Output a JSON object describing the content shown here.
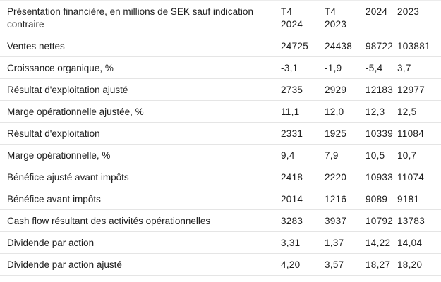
{
  "colors": {
    "background": "#ffffff",
    "text": "#1d1d1d",
    "divider": "#e5e5e5"
  },
  "table": {
    "header": {
      "label": "Présentation financière, en millions de SEK sauf indication contraire",
      "columns": [
        [
          "T4",
          "2024"
        ],
        [
          "T4",
          "2023"
        ],
        [
          "2024"
        ],
        [
          "2023"
        ]
      ]
    },
    "rows": [
      {
        "label": "Ventes nettes",
        "values": [
          "24725",
          "24438",
          "98722",
          "103881"
        ]
      },
      {
        "label": "Croissance organique, %",
        "values": [
          "-3,1",
          "-1,9",
          "-5,4",
          "3,7"
        ]
      },
      {
        "label": "Résultat d'exploitation ajusté",
        "values": [
          "2735",
          "2929",
          "12183",
          "12977"
        ]
      },
      {
        "label": "Marge opérationnelle ajustée, %",
        "values": [
          "11,1",
          "12,0",
          "12,3",
          "12,5"
        ]
      },
      {
        "label": "Résultat d'exploitation",
        "values": [
          "2331",
          "1925",
          "10339",
          "11084"
        ]
      },
      {
        "label": "Marge opérationnelle, %",
        "values": [
          "9,4",
          "7,9",
          "10,5",
          "10,7"
        ]
      },
      {
        "label": "Bénéfice ajusté avant impôts",
        "values": [
          "2418",
          "2220",
          "10933",
          "11074"
        ]
      },
      {
        "label": "Bénéfice avant impôts",
        "values": [
          "2014",
          "1216",
          "9089",
          "9181"
        ]
      },
      {
        "label": "Cash flow résultant des activités opérationnelles",
        "values": [
          "3283",
          "3937",
          "10792",
          "13783"
        ]
      },
      {
        "label": "Dividende par action",
        "values": [
          "3,31",
          "1,37",
          "14,22",
          "14,04"
        ]
      },
      {
        "label": "Dividende par action ajusté",
        "values": [
          "4,20",
          "3,57",
          "18,27",
          "18,20"
        ]
      }
    ]
  },
  "chart_data": {
    "type": "table",
    "title": "Présentation financière, en millions de SEK sauf indication contraire",
    "columns": [
      "T4 2024",
      "T4 2023",
      "2024",
      "2023"
    ],
    "number_format": "French decimal comma",
    "rows": [
      {
        "label": "Ventes nettes",
        "values": [
          24725,
          24438,
          98722,
          103881
        ]
      },
      {
        "label": "Croissance organique, %",
        "values": [
          -3.1,
          -1.9,
          -5.4,
          3.7
        ]
      },
      {
        "label": "Résultat d'exploitation ajusté",
        "values": [
          2735,
          2929,
          12183,
          12977
        ]
      },
      {
        "label": "Marge opérationnelle ajustée, %",
        "values": [
          11.1,
          12.0,
          12.3,
          12.5
        ]
      },
      {
        "label": "Résultat d'exploitation",
        "values": [
          2331,
          1925,
          10339,
          11084
        ]
      },
      {
        "label": "Marge opérationnelle, %",
        "values": [
          9.4,
          7.9,
          10.5,
          10.7
        ]
      },
      {
        "label": "Bénéfice ajusté avant impôts",
        "values": [
          2418,
          2220,
          10933,
          11074
        ]
      },
      {
        "label": "Bénéfice avant impôts",
        "values": [
          2014,
          1216,
          9089,
          9181
        ]
      },
      {
        "label": "Cash flow résultant des activités opérationnelles",
        "values": [
          3283,
          3937,
          10792,
          13783
        ]
      },
      {
        "label": "Dividende par action",
        "values": [
          3.31,
          1.37,
          14.22,
          14.04
        ]
      },
      {
        "label": "Dividende par action ajusté",
        "values": [
          4.2,
          3.57,
          18.27,
          18.2
        ]
      }
    ]
  }
}
